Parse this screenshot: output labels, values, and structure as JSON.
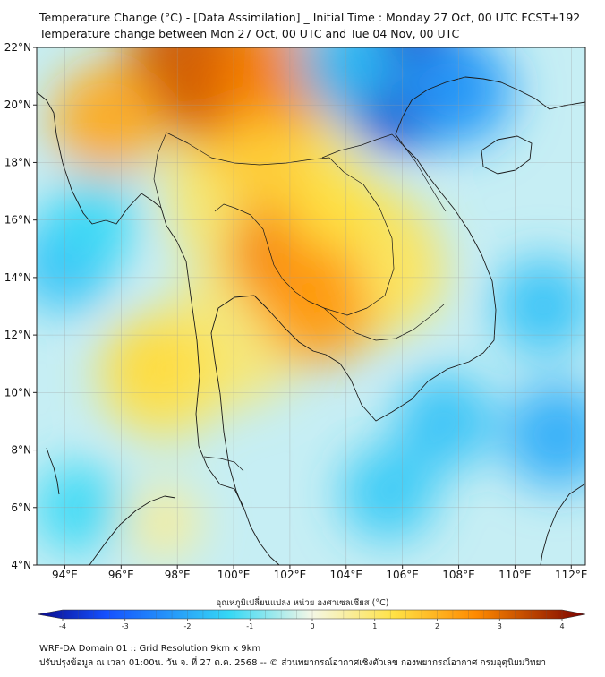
{
  "title": {
    "line1": "Temperature Change (°C) - [Data Assimilation] _ Initial Time : Monday 27 Oct, 00 UTC FCST+192",
    "line2": "Temperature change between Mon 27 Oct, 00 UTC and Tue 04 Nov, 00 UTC"
  },
  "colorbar": {
    "label": "อุณหภูมิเปลี่ยนแปลง หน่วย องศาเซลเซียส (°C)",
    "ticks": [
      "-4",
      "-3",
      "-2",
      "-1",
      "0",
      "1",
      "2",
      "3",
      "4"
    ],
    "min": -4,
    "max": 4
  },
  "footer": {
    "line1": "WRF-DA Domain 01 :: Grid Resolution 9km x 9km",
    "line2": "ปรับปรุงข้อมูล ณ เวลา 01:00น. วัน จ. ที่ 27 ต.ค. 2568 -- © ส่วนพยากรณ์อากาศเชิงตัวเลข กองพยากรณ์อากาศ กรมอุตุนิยมวิทยา"
  },
  "chart_data": {
    "type": "heatmap",
    "title": "Temperature Change (°C) - [Data Assimilation] _ Initial Time : Monday 27 Oct, 00 UTC FCST+192",
    "subtitle": "Temperature change between Mon 27 Oct, 00 UTC and Tue 04 Nov, 00 UTC",
    "xlim": [
      93,
      112.5
    ],
    "ylim": [
      4,
      22
    ],
    "x_tick_values": [
      94,
      96,
      98,
      100,
      102,
      104,
      106,
      108,
      110,
      112
    ],
    "x_ticks": [
      "94°E",
      "96°E",
      "98°E",
      "100°E",
      "102°E",
      "104°E",
      "106°E",
      "108°E",
      "110°E",
      "112°E"
    ],
    "y_tick_values": [
      4,
      6,
      8,
      10,
      12,
      14,
      16,
      18,
      20,
      22
    ],
    "y_ticks": [
      "4°N",
      "6°N",
      "8°N",
      "10°N",
      "12°N",
      "14°N",
      "16°N",
      "18°N",
      "20°N",
      "22°N"
    ],
    "grid": true,
    "colorbar_range": [
      -4,
      4
    ],
    "colors": {
      "min": "#0a0a8a",
      "cold": "#1450ff",
      "cool": "#35d8f5",
      "neutral": "#f4f7e6",
      "warm": "#ffe245",
      "hot": "#ff8a00",
      "max": "#7a0000"
    },
    "field_regions": [
      {
        "lon": 99.5,
        "lat": 20.5,
        "value": 2.5
      },
      {
        "lon": 98.5,
        "lat": 21.5,
        "value": 3.0
      },
      {
        "lon": 101.5,
        "lat": 21.0,
        "value": 2.5
      },
      {
        "lon": 95.5,
        "lat": 19.5,
        "value": 2.0
      },
      {
        "lon": 102.0,
        "lat": 14.8,
        "value": 2.5
      },
      {
        "lon": 103.0,
        "lat": 13.0,
        "value": 2.2
      },
      {
        "lon": 106.0,
        "lat": 21.0,
        "value": -3.5
      },
      {
        "lon": 108.0,
        "lat": 20.5,
        "value": -2.0
      },
      {
        "lon": 104.0,
        "lat": 21.5,
        "value": -1.5
      },
      {
        "lon": 94.0,
        "lat": 14.5,
        "value": -1.5
      },
      {
        "lon": 95.0,
        "lat": 16.0,
        "value": -1.2
      },
      {
        "lon": 111.0,
        "lat": 13.0,
        "value": -1.5
      },
      {
        "lon": 111.5,
        "lat": 8.5,
        "value": -1.8
      },
      {
        "lon": 107.5,
        "lat": 9.0,
        "value": -1.5
      },
      {
        "lon": 105.5,
        "lat": 6.5,
        "value": -1.4
      },
      {
        "lon": 94.5,
        "lat": 6.0,
        "value": -1.2
      },
      {
        "lon": 97.0,
        "lat": 11.0,
        "value": 1.3
      },
      {
        "lon": 103.5,
        "lat": 16.5,
        "value": 1.2
      },
      {
        "lon": 101.0,
        "lat": 18.0,
        "value": 1.5
      },
      {
        "lon": 97.5,
        "lat": 5.5,
        "value": 0.6
      },
      {
        "lon": 106.0,
        "lat": 14.0,
        "value": 1.0
      }
    ]
  }
}
